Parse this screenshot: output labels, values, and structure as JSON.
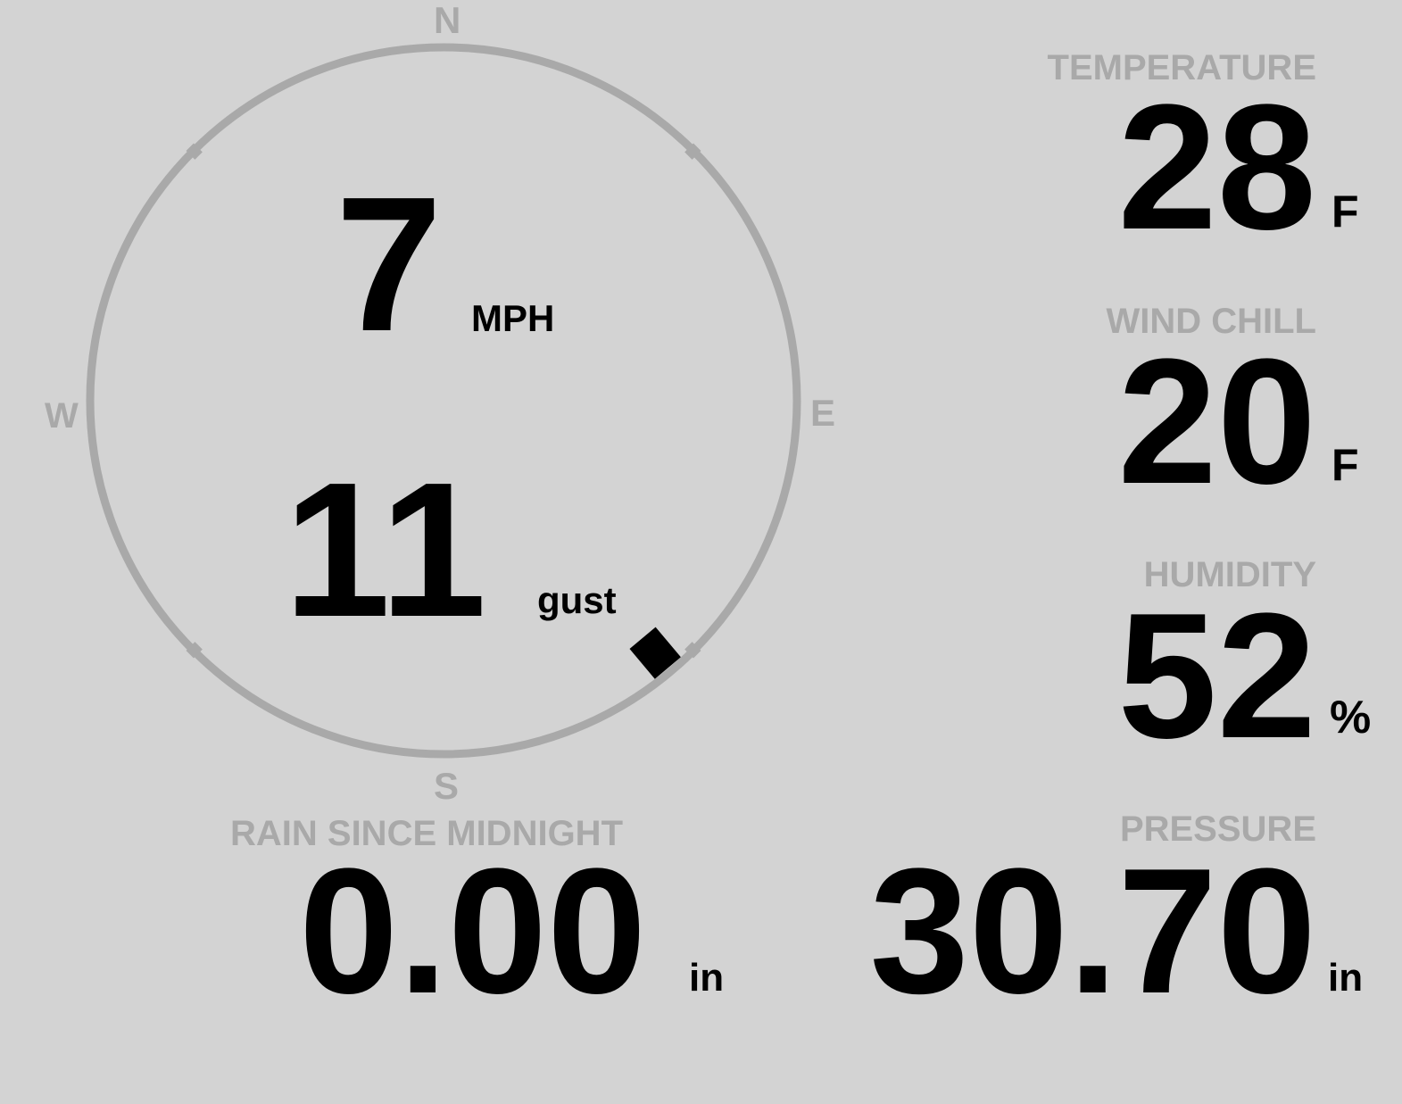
{
  "compass": {
    "north": "N",
    "south": "S",
    "east": "E",
    "west": "W",
    "ring_color": "#a9a9a9"
  },
  "wind": {
    "speed": "7",
    "speed_unit": "MPH",
    "gust": "11",
    "gust_unit": "gust",
    "direction_deg": 140
  },
  "temperature": {
    "label": "TEMPERATURE",
    "value": "28",
    "unit": "F"
  },
  "wind_chill": {
    "label": "WIND CHILL",
    "value": "20",
    "unit": "F"
  },
  "humidity": {
    "label": "HUMIDITY",
    "value": "52",
    "unit": "%"
  },
  "rain": {
    "label": "RAIN SINCE MIDNIGHT",
    "value": "0.00",
    "unit": "in"
  },
  "pressure": {
    "label": "PRESSURE",
    "value": "30.70",
    "unit": "in"
  },
  "colors": {
    "background": "#d3d3d3",
    "label": "#a9a9a9",
    "value": "#000000"
  }
}
